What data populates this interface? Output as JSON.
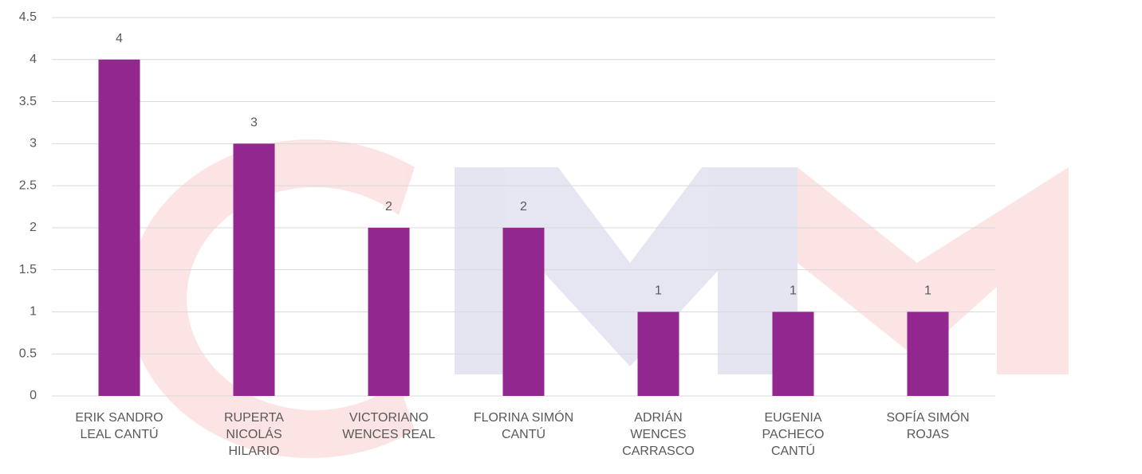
{
  "chart_data": {
    "type": "bar",
    "categories": [
      "ERIK SANDRO LEAL CANTÚ",
      "RUPERTA NICOLÁS HILARIO",
      "VICTORIANO WENCES REAL",
      "FLORINA SIMÓN CANTÚ",
      "ADRIÁN WENCES CARRASCO",
      "EUGENIA PACHECO CANTÚ",
      "SOFÍA SIMÓN ROJAS"
    ],
    "values": [
      4,
      3,
      2,
      2,
      1,
      1,
      1
    ],
    "color": "#92278f",
    "ylim": [
      0,
      4.5
    ],
    "yticks": [
      0,
      0.5,
      1,
      1.5,
      2,
      2.5,
      3,
      3.5,
      4,
      4.5
    ],
    "grid": true
  }
}
